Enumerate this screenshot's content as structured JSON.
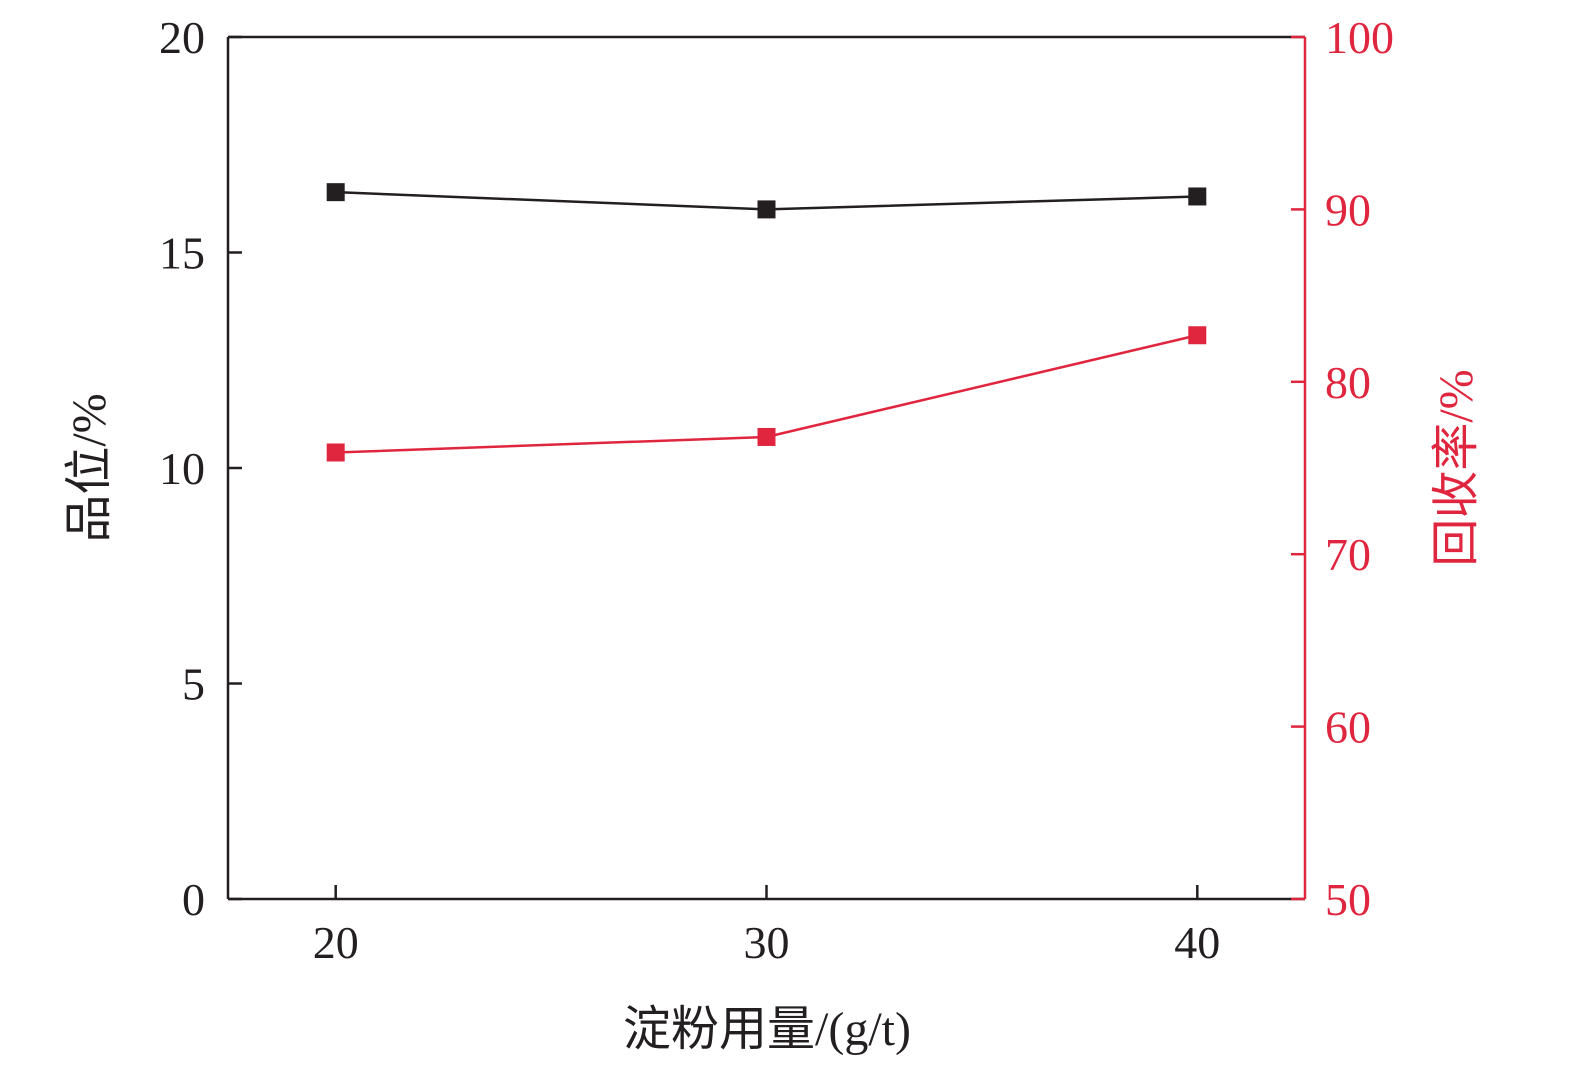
{
  "chart_data": {
    "type": "line",
    "xlabel": "淀粉用量/(g/t)",
    "ylabel_left": "品位/%",
    "ylabel_right": "回收率/%",
    "x": [
      20,
      30,
      40
    ],
    "xlim": [
      17.5,
      42.5
    ],
    "ylim_left": [
      0,
      20
    ],
    "ylim_right": [
      50,
      100
    ],
    "xticks": [
      "20",
      "30",
      "40"
    ],
    "yticks_left": [
      "0",
      "5",
      "10",
      "15",
      "20"
    ],
    "yticks_right": [
      "50",
      "60",
      "70",
      "80",
      "90",
      "100"
    ],
    "grid": false,
    "series": [
      {
        "axis": "left",
        "color": "#231f20",
        "marker": "square",
        "values": [
          16.4,
          16.0,
          16.3
        ]
      },
      {
        "axis": "right",
        "color": "#e0263f",
        "marker": "square",
        "values": [
          75.9,
          76.8,
          82.7
        ]
      }
    ],
    "colors": {
      "left_axis": "#231f20",
      "right_axis": "#e0263f"
    }
  }
}
